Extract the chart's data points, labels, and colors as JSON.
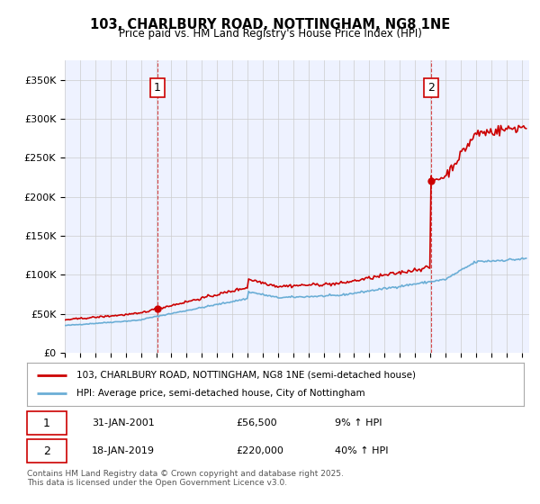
{
  "title": "103, CHARLBURY ROAD, NOTTINGHAM, NG8 1NE",
  "subtitle": "Price paid vs. HM Land Registry's House Price Index (HPI)",
  "ylabel_ticks": [
    "£0",
    "£50K",
    "£100K",
    "£150K",
    "£200K",
    "£250K",
    "£300K",
    "£350K"
  ],
  "ytick_values": [
    0,
    50000,
    100000,
    150000,
    200000,
    250000,
    300000,
    350000
  ],
  "ylim": [
    0,
    375000
  ],
  "xlim_start": 1995.0,
  "xlim_end": 2025.5,
  "line1_color": "#cc0000",
  "line2_color": "#6baed6",
  "marker1_x": 2001.08,
  "marker1_y": 56500,
  "marker2_x": 2019.05,
  "marker2_y": 220000,
  "annotation1_label": "1",
  "annotation2_label": "2",
  "legend_line1": "103, CHARLBURY ROAD, NOTTINGHAM, NG8 1NE (semi-detached house)",
  "legend_line2": "HPI: Average price, semi-detached house, City of Nottingham",
  "footnote": "Contains HM Land Registry data © Crown copyright and database right 2025.\nThis data is licensed under the Open Government Licence v3.0.",
  "background_color": "#ffffff",
  "plot_bg_color": "#eef2ff"
}
